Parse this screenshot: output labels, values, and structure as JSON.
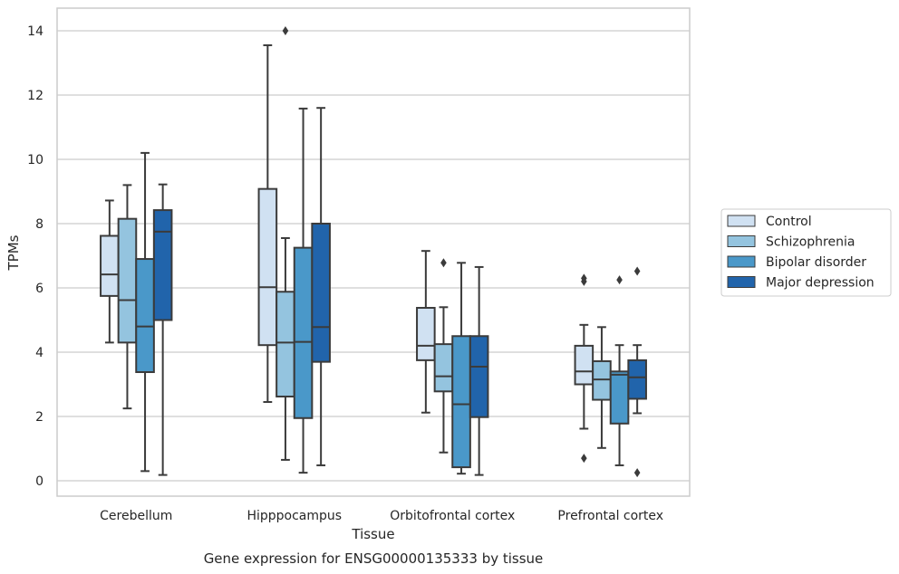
{
  "chart_data": {
    "type": "boxplot",
    "xlabel": "Tissue",
    "ylabel": "TPMs",
    "caption": "Gene expression for ENSG00000135333 by tissue",
    "ylim": [
      -0.45,
      14.7
    ],
    "yticks": [
      0,
      2,
      4,
      6,
      8,
      10,
      12,
      14
    ],
    "grid": true,
    "legend_position": "right",
    "categories": [
      "Cerebellum",
      "Hipppocampus",
      "Orbitofrontal cortex",
      "Prefrontal cortex"
    ],
    "series": [
      {
        "name": "Control",
        "color": "#d0e1f2",
        "boxes": [
          {
            "whislo": 4.3,
            "q1": 5.75,
            "med": 6.42,
            "q3": 7.62,
            "whishi": 8.72,
            "fliers": []
          },
          {
            "whislo": 2.45,
            "q1": 4.22,
            "med": 6.02,
            "q3": 9.08,
            "whishi": 13.55,
            "fliers": []
          },
          {
            "whislo": 2.12,
            "q1": 3.75,
            "med": 4.2,
            "q3": 5.38,
            "whishi": 7.15,
            "fliers": []
          },
          {
            "whislo": 1.62,
            "q1": 3.0,
            "med": 3.4,
            "q3": 4.2,
            "whishi": 4.85,
            "fliers": [
              0.7,
              6.2,
              6.3
            ]
          }
        ]
      },
      {
        "name": "Schizophrenia",
        "color": "#94c4df",
        "boxes": [
          {
            "whislo": 2.25,
            "q1": 4.3,
            "med": 5.62,
            "q3": 8.15,
            "whishi": 9.2,
            "fliers": []
          },
          {
            "whislo": 0.65,
            "q1": 2.62,
            "med": 4.3,
            "q3": 5.88,
            "whishi": 7.55,
            "fliers": [
              14.0
            ]
          },
          {
            "whislo": 0.88,
            "q1": 2.78,
            "med": 3.25,
            "q3": 4.25,
            "whishi": 5.4,
            "fliers": [
              6.78
            ]
          },
          {
            "whislo": 1.02,
            "q1": 2.52,
            "med": 3.15,
            "q3": 3.72,
            "whishi": 4.78,
            "fliers": []
          }
        ]
      },
      {
        "name": "Bipolar disorder",
        "color": "#4a98c9",
        "boxes": [
          {
            "whislo": 0.3,
            "q1": 3.38,
            "med": 4.8,
            "q3": 6.9,
            "whishi": 10.2,
            "fliers": []
          },
          {
            "whislo": 0.25,
            "q1": 1.95,
            "med": 4.32,
            "q3": 7.25,
            "whishi": 11.58,
            "fliers": []
          },
          {
            "whislo": 0.22,
            "q1": 0.42,
            "med": 2.38,
            "q3": 4.5,
            "whishi": 6.78,
            "fliers": []
          },
          {
            "whislo": 0.48,
            "q1": 1.78,
            "med": 3.3,
            "q3": 3.4,
            "whishi": 4.22,
            "fliers": [
              6.25
            ]
          }
        ]
      },
      {
        "name": "Major depression",
        "color": "#2164ab",
        "boxes": [
          {
            "whislo": 0.18,
            "q1": 5.0,
            "med": 7.75,
            "q3": 8.42,
            "whishi": 9.22,
            "fliers": []
          },
          {
            "whislo": 0.48,
            "q1": 3.7,
            "med": 4.78,
            "q3": 8.0,
            "whishi": 11.6,
            "fliers": []
          },
          {
            "whislo": 0.18,
            "q1": 1.98,
            "med": 3.55,
            "q3": 4.5,
            "whishi": 6.65,
            "fliers": []
          },
          {
            "whislo": 2.1,
            "q1": 2.55,
            "med": 3.22,
            "q3": 3.75,
            "whishi": 4.22,
            "fliers": [
              0.25,
              6.52
            ]
          }
        ]
      }
    ]
  }
}
